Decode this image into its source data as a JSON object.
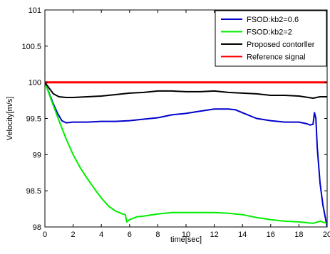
{
  "chart_data": {
    "type": "line",
    "title": "",
    "xlabel": "time[sec]",
    "ylabel": "Velocity[m/s]",
    "xlim": [
      0,
      20
    ],
    "ylim": [
      98,
      101
    ],
    "xticks": [
      0,
      2,
      4,
      6,
      8,
      10,
      12,
      14,
      16,
      18,
      20
    ],
    "yticks": [
      98,
      98.5,
      99,
      99.5,
      100,
      100.5,
      101
    ],
    "xtick_labels": [
      "0",
      "2",
      "4",
      "6",
      "8",
      "10",
      "12",
      "14",
      "16",
      "18",
      "20"
    ],
    "ytick_labels": [
      "98",
      "98.5",
      "99",
      "99.5",
      "100",
      "100.5",
      "101"
    ],
    "grid": false,
    "legend_position": "top-right",
    "series": [
      {
        "name": "FSOD:kb2=0.6",
        "color": "#0000cc",
        "x": [
          0,
          0.3,
          0.6,
          0.9,
          1.2,
          1.5,
          2,
          3,
          4,
          5,
          6,
          7,
          8,
          9,
          10,
          11,
          12,
          13,
          13.5,
          14,
          15,
          16,
          17,
          18,
          18.5,
          18.8,
          19.0,
          19.1,
          19.2,
          19.3,
          19.5,
          19.7,
          20
        ],
        "y": [
          100,
          99.85,
          99.7,
          99.57,
          99.47,
          99.44,
          99.45,
          99.45,
          99.46,
          99.46,
          99.47,
          99.49,
          99.51,
          99.55,
          99.57,
          99.6,
          99.63,
          99.63,
          99.62,
          99.58,
          99.5,
          99.47,
          99.45,
          99.45,
          99.43,
          99.41,
          99.42,
          99.58,
          99.5,
          99.1,
          98.6,
          98.3,
          98.0
        ]
      },
      {
        "name": "FSOD:kb2=2",
        "color": "#00ee00",
        "x": [
          0,
          0.5,
          1,
          1.5,
          2,
          2.5,
          3,
          3.5,
          4,
          4.5,
          5,
          5.5,
          5.7,
          5.8,
          6,
          6.5,
          7,
          8,
          9,
          10,
          11,
          12,
          13,
          14,
          15,
          16,
          17,
          18,
          19,
          19.5,
          20
        ],
        "y": [
          100,
          99.73,
          99.47,
          99.22,
          99.0,
          98.82,
          98.67,
          98.53,
          98.4,
          98.29,
          98.22,
          98.18,
          98.17,
          98.07,
          98.1,
          98.14,
          98.15,
          98.18,
          98.2,
          98.2,
          98.2,
          98.2,
          98.19,
          98.17,
          98.13,
          98.1,
          98.08,
          98.07,
          98.05,
          98.08,
          98.05
        ]
      },
      {
        "name": "Proposed contorller",
        "color": "#000000",
        "x": [
          0,
          0.3,
          0.6,
          1,
          1.5,
          2,
          3,
          4,
          5,
          6,
          7,
          8,
          9,
          10,
          11,
          12,
          13,
          14,
          15,
          16,
          17,
          18,
          19,
          19.5,
          20
        ],
        "y": [
          100,
          99.92,
          99.84,
          99.8,
          99.79,
          99.79,
          99.8,
          99.81,
          99.83,
          99.85,
          99.86,
          99.88,
          99.88,
          99.87,
          99.87,
          99.88,
          99.86,
          99.85,
          99.84,
          99.82,
          99.82,
          99.81,
          99.78,
          99.8,
          99.8
        ]
      },
      {
        "name": "Reference signal",
        "color": "#ff0000",
        "x": [
          0,
          20
        ],
        "y": [
          100,
          100
        ]
      }
    ]
  }
}
